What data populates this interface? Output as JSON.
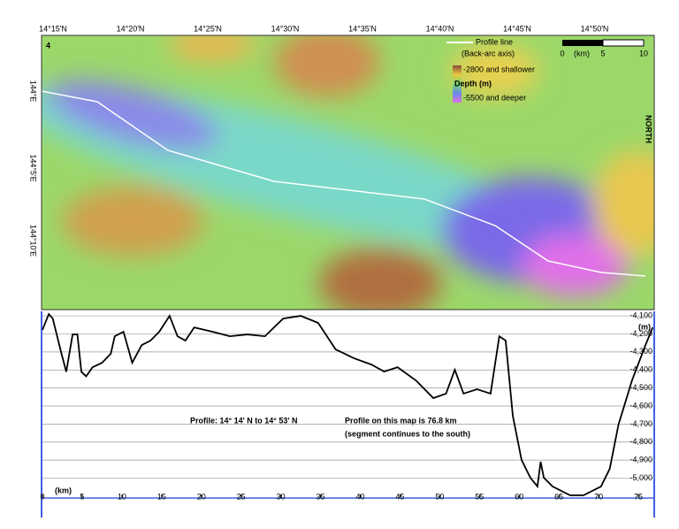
{
  "map": {
    "panel_label": "4",
    "lat_labels": [
      "14°15'N",
      "14°20'N",
      "14°25'N",
      "14°30'N",
      "14°35'N",
      "14°40'N",
      "14°45'N",
      "14°50'N"
    ],
    "lon_labels": [
      "144°E",
      "144°5'E",
      "144°10'E"
    ],
    "legend_line": "Profile line",
    "legend_line_sub": "(Back-arc axis)",
    "legend_shallow": "-2800 and shallower",
    "legend_title": "Depth (m)",
    "legend_deep": "-5500 and deeper",
    "scale_labels": [
      "0",
      "(km)",
      "5",
      "10"
    ],
    "north": "NORTH"
  },
  "chart_data": {
    "type": "line",
    "title": "Profile:  14° 14' N to 14° 53' N",
    "annotation": "Profile on this map is 76.8 km",
    "annotation_sub": "(segment continues to the south)",
    "x_label": "(km)",
    "y_label": "(m)",
    "x": [
      0,
      0.8,
      1.3,
      2.4,
      3,
      3.8,
      4.4,
      4.9,
      5.5,
      6.3,
      7.5,
      8.6,
      9.1,
      10.2,
      11.3,
      12.5,
      13.6,
      14.7,
      16,
      17,
      18,
      19.1,
      21.4,
      23.6,
      25.8,
      28,
      30.3,
      32.5,
      34.7,
      36.9,
      39.2,
      41.4,
      43,
      44.7,
      47,
      49.2,
      50.8,
      51.9,
      53,
      54.7,
      56.4,
      57.5,
      58.3,
      59.2,
      60.3,
      61.4,
      62.3,
      62.7,
      63.1,
      64.2,
      66.4,
      68.1,
      70.3,
      71.4,
      72.5,
      74.2,
      75.9,
      76.8
    ],
    "series": [
      {
        "name": "Depth",
        "color": "#000000",
        "values": [
          -4178,
          -4090,
          -4115,
          -4310,
          -4410,
          -4203,
          -4203,
          -4410,
          -4435,
          -4385,
          -4360,
          -4310,
          -4213,
          -4188,
          -4360,
          -4262,
          -4237,
          -4188,
          -4100,
          -4213,
          -4237,
          -4164,
          -4188,
          -4213,
          -4203,
          -4213,
          -4115,
          -4100,
          -4139,
          -4286,
          -4335,
          -4370,
          -4409,
          -4385,
          -4458,
          -4556,
          -4531,
          -4399,
          -4531,
          -4507,
          -4531,
          -4213,
          -4237,
          -4654,
          -4899,
          -4997,
          -5046,
          -4909,
          -4997,
          -5046,
          -5095,
          -5095,
          -5046,
          -4948,
          -4703,
          -4458,
          -4262,
          -4164
        ]
      }
    ],
    "xlim": [
      0,
      77
    ],
    "ylim": [
      -5120,
      -4080
    ],
    "xticks": [
      0,
      5,
      10,
      15,
      20,
      25,
      30,
      35,
      40,
      45,
      50,
      55,
      60,
      65,
      70,
      75
    ],
    "yticks": [
      {
        "value": -4100,
        "label": "-4,100"
      },
      {
        "value": -4200,
        "label": "-4,200"
      },
      {
        "value": -4300,
        "label": "-4,300"
      },
      {
        "value": -4400,
        "label": "-4,400"
      },
      {
        "value": -4500,
        "label": "-4,500"
      },
      {
        "value": -4600,
        "label": "-4,600"
      },
      {
        "value": -4700,
        "label": "-4,700"
      },
      {
        "value": -4800,
        "label": "-4,800"
      },
      {
        "value": -4900,
        "label": "-4,900"
      },
      {
        "value": -5000,
        "label": "-5,000"
      }
    ],
    "grid": true
  }
}
